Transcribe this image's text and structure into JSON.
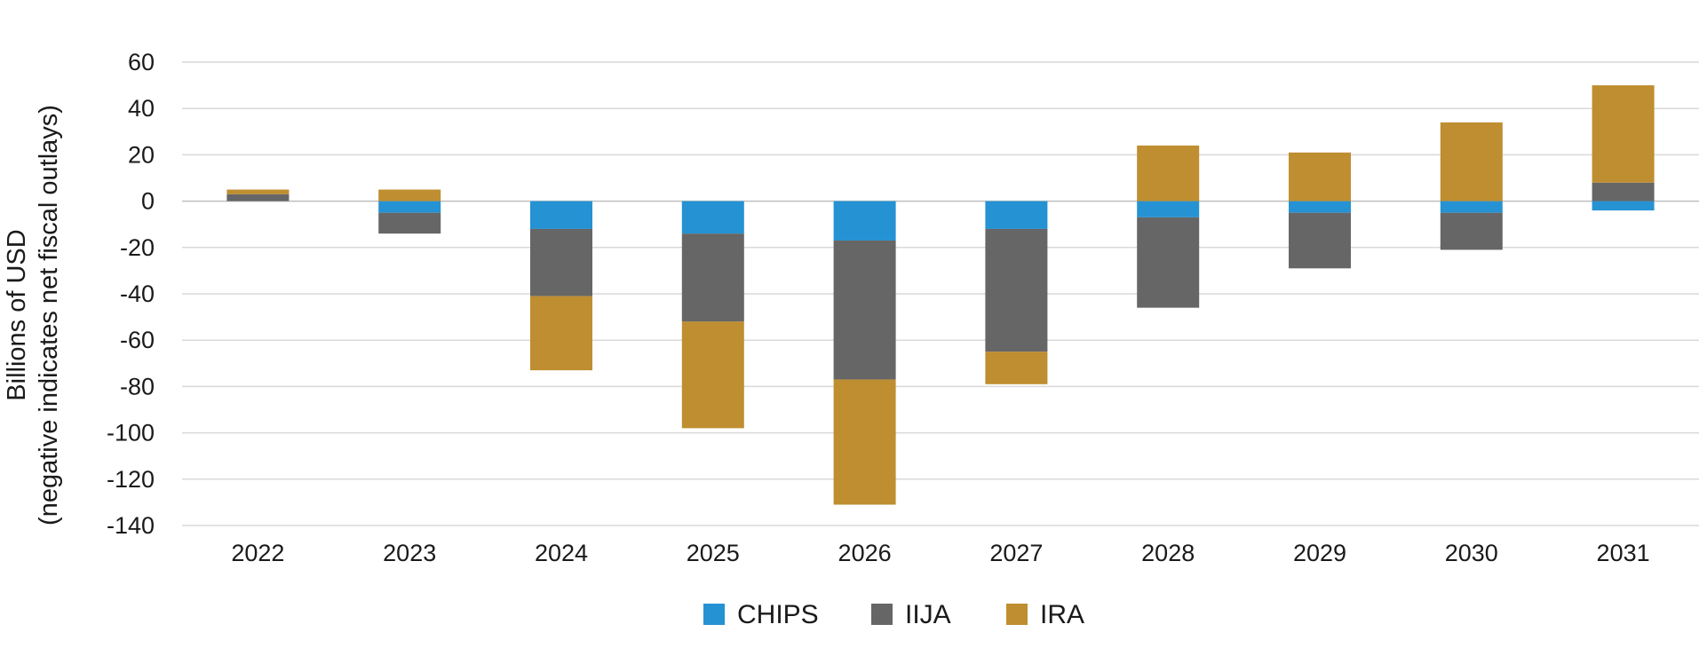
{
  "chart_data": {
    "type": "stacked-bar",
    "title": "",
    "xlabel": "",
    "ylabel": "Billions of USD",
    "ylabel_sub": "(negative indicates net fiscal outlays)",
    "ylim": [
      -140,
      60
    ],
    "yticks": [
      60,
      40,
      20,
      0,
      -20,
      -40,
      -60,
      -80,
      -100,
      -120,
      -140
    ],
    "grid": true,
    "legend_position": "bottom-center",
    "categories": [
      "2022",
      "2023",
      "2024",
      "2025",
      "2026",
      "2027",
      "2028",
      "2029",
      "2030",
      "2031"
    ],
    "series": [
      {
        "name": "CHIPS",
        "color": "#2592d3",
        "values": [
          0,
          -5,
          -12,
          -14,
          -17,
          -12,
          -7,
          -5,
          -5,
          -4
        ]
      },
      {
        "name": "IIJA",
        "color": "#666666",
        "values": [
          3,
          -9,
          -29,
          -38,
          -60,
          -53,
          -39,
          -24,
          -16,
          8
        ]
      },
      {
        "name": "IRA",
        "color": "#be8e30",
        "values": [
          2,
          5,
          -32,
          -46,
          -54,
          -14,
          24,
          21,
          34,
          42
        ]
      }
    ]
  }
}
